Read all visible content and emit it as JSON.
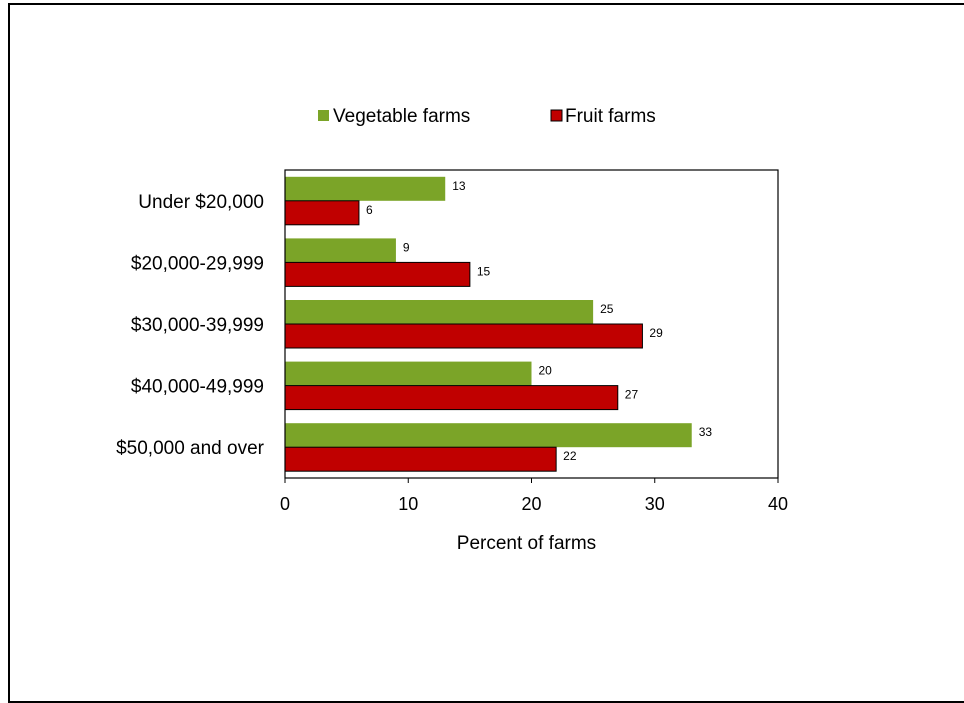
{
  "chart_data": {
    "type": "bar",
    "orientation": "horizontal",
    "categories": [
      "Under $20,000",
      "$20,000-29,999",
      "$30,000-39,999",
      "$40,000-49,999",
      "$50,000 and over"
    ],
    "series": [
      {
        "name": "Vegetable farms",
        "color": "#7ba428",
        "values": [
          13,
          9,
          25,
          20,
          33
        ]
      },
      {
        "name": "Fruit farms",
        "color": "#c00000",
        "values": [
          6,
          15,
          29,
          27,
          22
        ]
      }
    ],
    "xlabel": "Percent  of farms",
    "ylabel": "",
    "xlim": [
      0,
      40
    ],
    "xticks": [
      "0",
      "10",
      "20",
      "30",
      "40"
    ],
    "legend_position": "top",
    "grid": false
  }
}
